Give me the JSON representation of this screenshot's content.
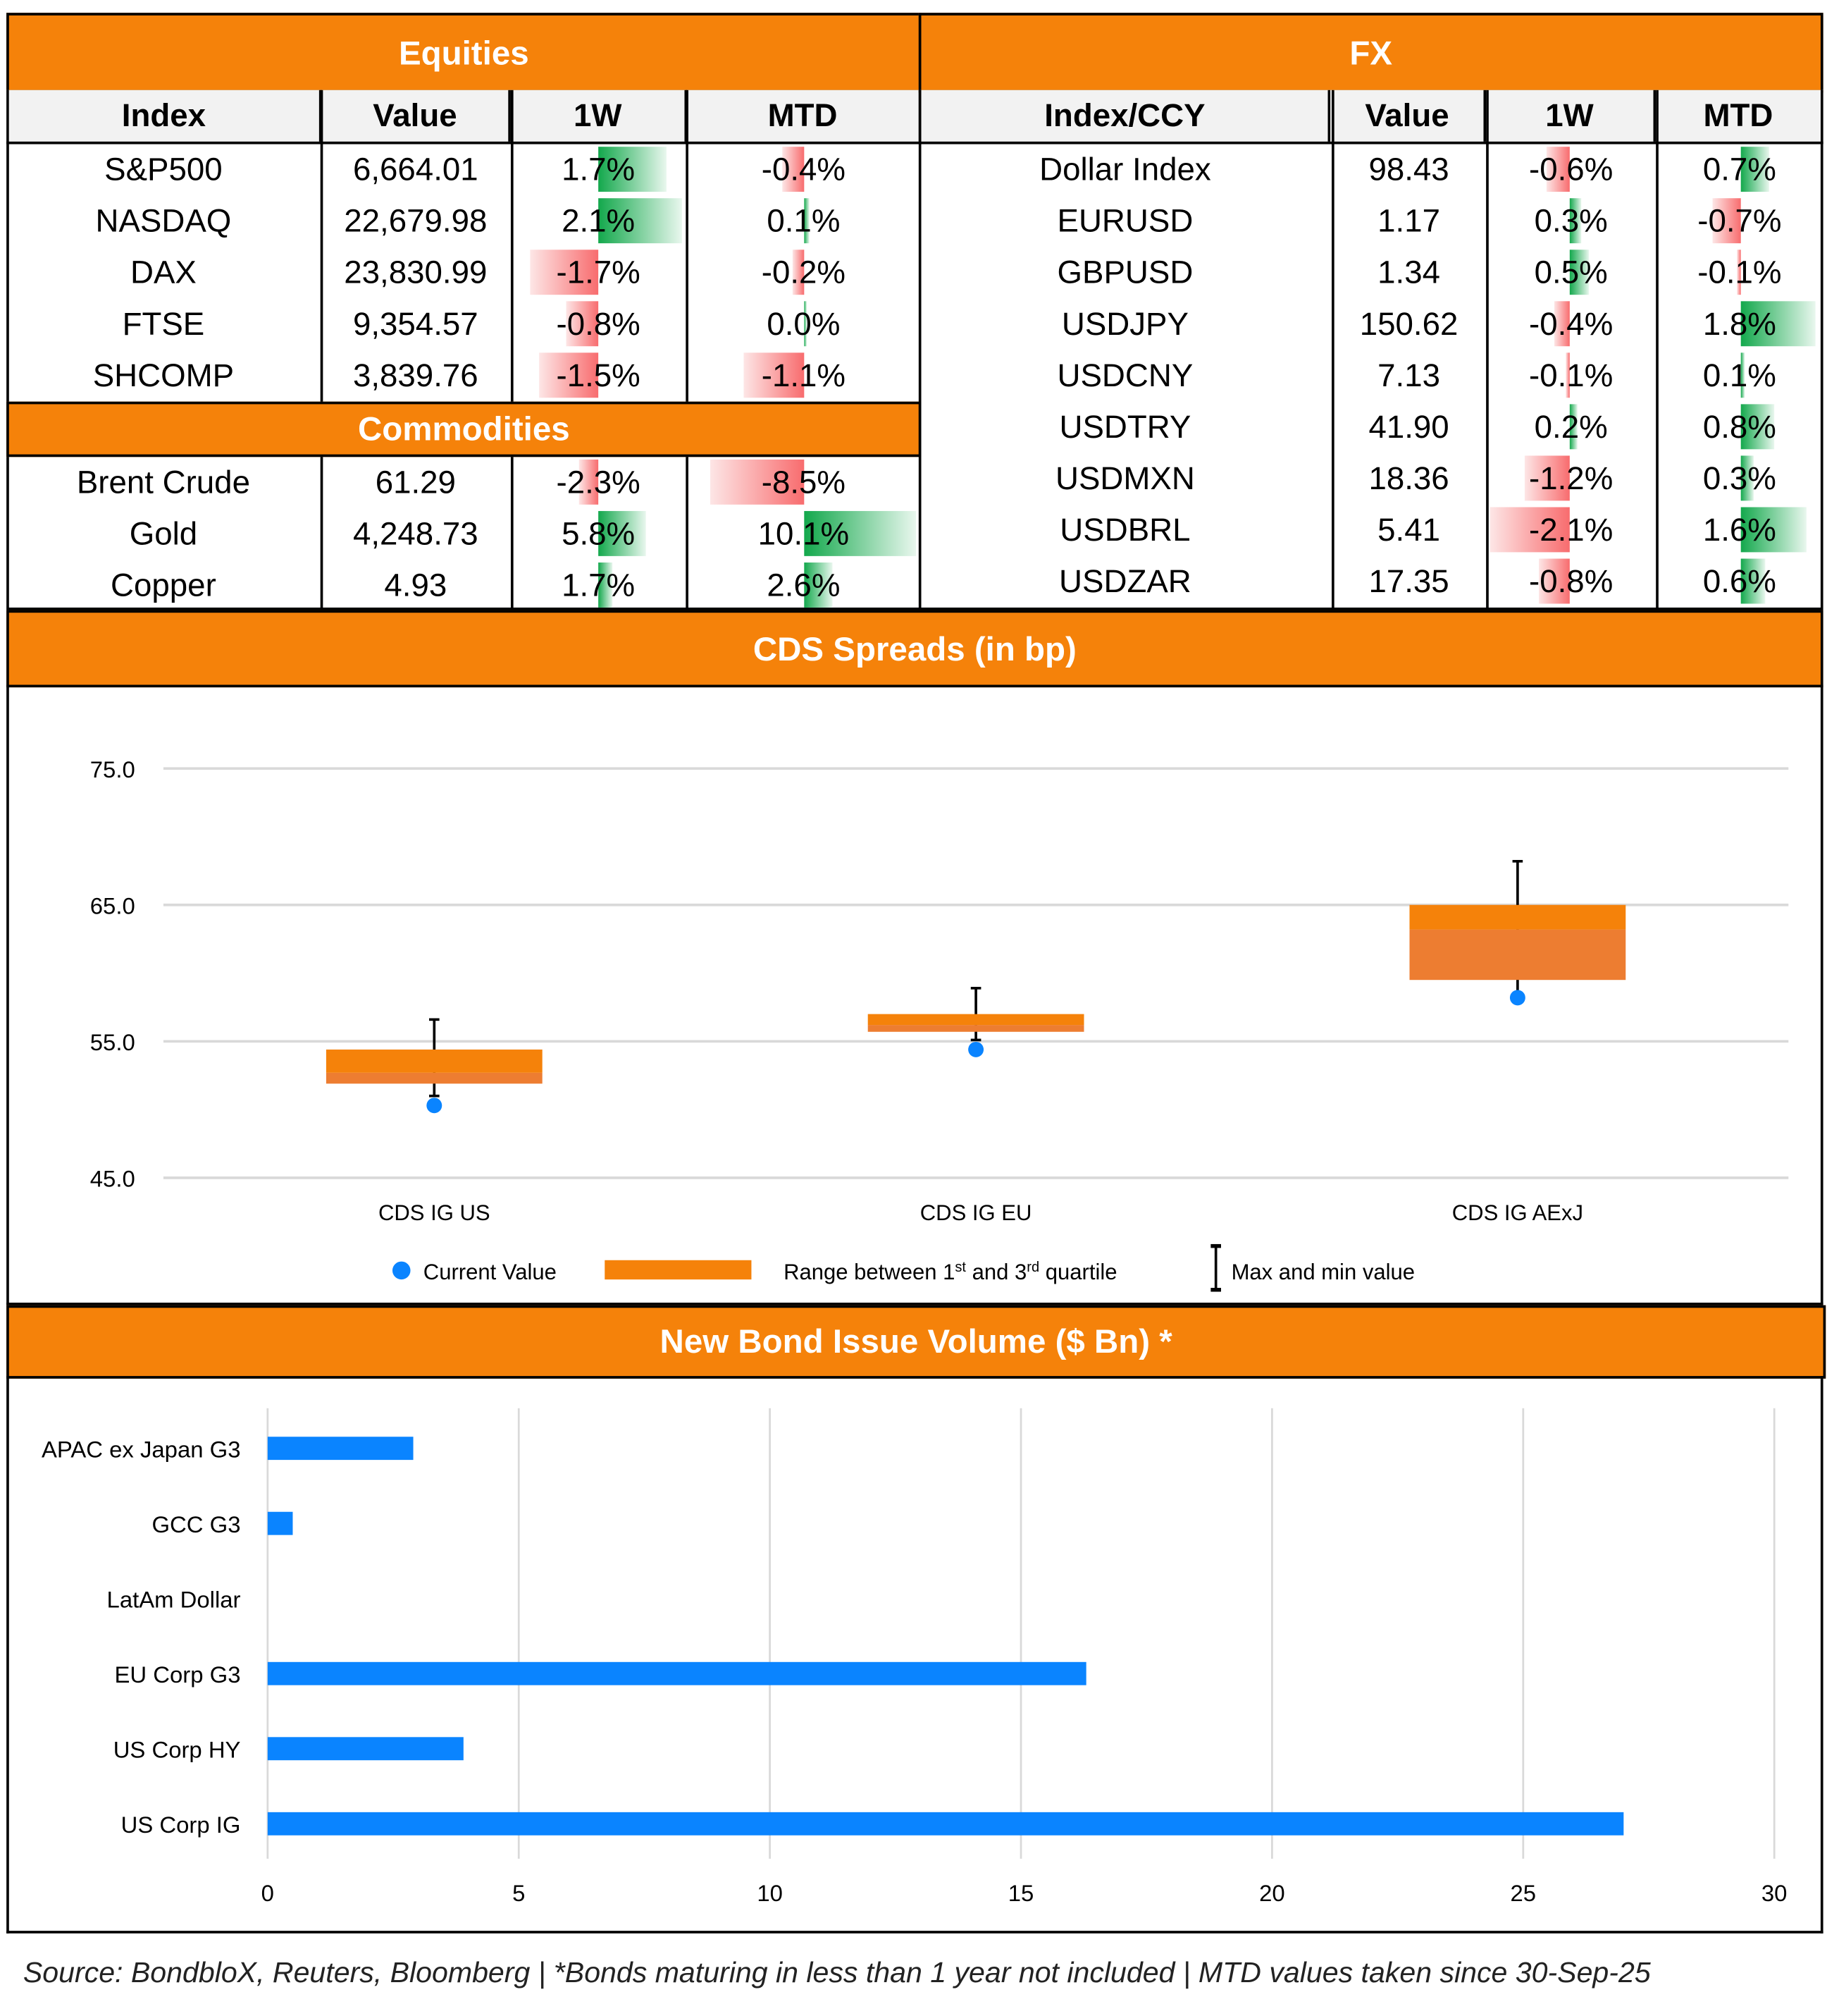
{
  "equities": {
    "title": "Equities",
    "headers": [
      "Index",
      "Value",
      "1W",
      "MTD"
    ],
    "rows": [
      {
        "name": "S&P500",
        "value": "6,664.01",
        "w1": "1.7%",
        "mtd": "-0.4%",
        "w1_num": 1.7,
        "mtd_num": -0.4
      },
      {
        "name": "NASDAQ",
        "value": "22,679.98",
        "w1": "2.1%",
        "mtd": "0.1%",
        "w1_num": 2.1,
        "mtd_num": 0.1
      },
      {
        "name": "DAX",
        "value": "23,830.99",
        "w1": "-1.7%",
        "mtd": "-0.2%",
        "w1_num": -1.7,
        "mtd_num": -0.2
      },
      {
        "name": "FTSE",
        "value": "9,354.57",
        "w1": "-0.8%",
        "mtd": "0.0%",
        "w1_num": -0.8,
        "mtd_num": 0.0
      },
      {
        "name": "SHCOMP",
        "value": "3,839.76",
        "w1": "-1.5%",
        "mtd": "-1.1%",
        "w1_num": -1.5,
        "mtd_num": -1.1
      }
    ]
  },
  "commodities": {
    "title": "Commodities",
    "rows": [
      {
        "name": "Brent Crude",
        "value": "61.29",
        "w1": "-2.3%",
        "mtd": "-8.5%",
        "w1_num": -2.3,
        "mtd_num": -8.5
      },
      {
        "name": "Gold",
        "value": "4,248.73",
        "w1": "5.8%",
        "mtd": "10.1%",
        "w1_num": 5.8,
        "mtd_num": 10.1
      },
      {
        "name": "Copper",
        "value": "4.93",
        "w1": "1.7%",
        "mtd": "2.6%",
        "w1_num": 1.7,
        "mtd_num": 2.6
      }
    ]
  },
  "fx": {
    "title": "FX",
    "headers": [
      "Index/CCY",
      "Value",
      "1W",
      "MTD"
    ],
    "rows": [
      {
        "name": "Dollar Index",
        "value": "98.43",
        "w1": "-0.6%",
        "mtd": "0.7%",
        "w1_num": -0.6,
        "mtd_num": 0.7
      },
      {
        "name": "EURUSD",
        "value": "1.17",
        "w1": "0.3%",
        "mtd": "-0.7%",
        "w1_num": 0.3,
        "mtd_num": -0.7
      },
      {
        "name": "GBPUSD",
        "value": "1.34",
        "w1": "0.5%",
        "mtd": "-0.1%",
        "w1_num": 0.5,
        "mtd_num": -0.1
      },
      {
        "name": "USDJPY",
        "value": "150.62",
        "w1": "-0.4%",
        "mtd": "1.8%",
        "w1_num": -0.4,
        "mtd_num": 1.8
      },
      {
        "name": "USDCNY",
        "value": "7.13",
        "w1": "-0.1%",
        "mtd": "0.1%",
        "w1_num": -0.1,
        "mtd_num": 0.1
      },
      {
        "name": "USDTRY",
        "value": "41.90",
        "w1": "0.2%",
        "mtd": "0.8%",
        "w1_num": 0.2,
        "mtd_num": 0.8
      },
      {
        "name": "USDMXN",
        "value": "18.36",
        "w1": "-1.2%",
        "mtd": "0.3%",
        "w1_num": -1.2,
        "mtd_num": 0.3
      },
      {
        "name": "USDBRL",
        "value": "5.41",
        "w1": "-2.1%",
        "mtd": "1.6%",
        "w1_num": -2.1,
        "mtd_num": 1.6
      },
      {
        "name": "USDZAR",
        "value": "17.35",
        "w1": "-0.8%",
        "mtd": "0.6%",
        "w1_num": -0.8,
        "mtd_num": 0.6
      }
    ]
  },
  "colors": {
    "header_orange": "#f5820a",
    "positive_bar": "#13a84c",
    "negative_bar": "#f86c6e",
    "point_blue": "#0a84ff",
    "box_upper": "#f5820a",
    "box_lower": "#ed7d31"
  },
  "chart_data": [
    {
      "type": "box",
      "title": "CDS Spreads (in bp)",
      "categories": [
        "CDS IG US",
        "CDS IG EU",
        "CDS IG AExJ"
      ],
      "ylim": [
        45,
        75
      ],
      "yticks": [
        "45.0",
        "55.0",
        "65.0",
        "75.0"
      ],
      "grid": true,
      "legend_position": "bottom",
      "legend": {
        "current": "Current Value",
        "range": "Range between 1",
        "range_sup1": "st",
        "range_mid": " and 3",
        "range_sup2": "rd",
        "range_end": " quartile",
        "maxmin": "Max and min value"
      },
      "series": {
        "current": [
          50.3,
          54.4,
          58.2
        ],
        "q1": [
          51.9,
          55.7,
          59.5
        ],
        "median": [
          52.7,
          56.2,
          63.2
        ],
        "q3": [
          54.4,
          57.0,
          65.0
        ],
        "min": [
          51.0,
          55.1,
          58.4
        ],
        "max": [
          56.6,
          58.9,
          68.2
        ]
      }
    },
    {
      "type": "bar",
      "orientation": "horizontal",
      "title": "New Bond Issue Volume ($ Bn) *",
      "categories": [
        "APAC ex Japan G3",
        "GCC G3",
        "LatAm Dollar",
        "EU Corp G3",
        "US Corp HY",
        "US Corp IG"
      ],
      "values": [
        2.9,
        0.5,
        0,
        16.3,
        3.9,
        27.0
      ],
      "xlim": [
        0,
        30
      ],
      "xticks": [
        "0",
        "5",
        "10",
        "15",
        "20",
        "25",
        "30"
      ],
      "grid": true
    }
  ],
  "footer": "Source: BondbloX, Reuters, Bloomberg | *Bonds maturing in less than 1 year not included | MTD values taken since 30-Sep-25"
}
